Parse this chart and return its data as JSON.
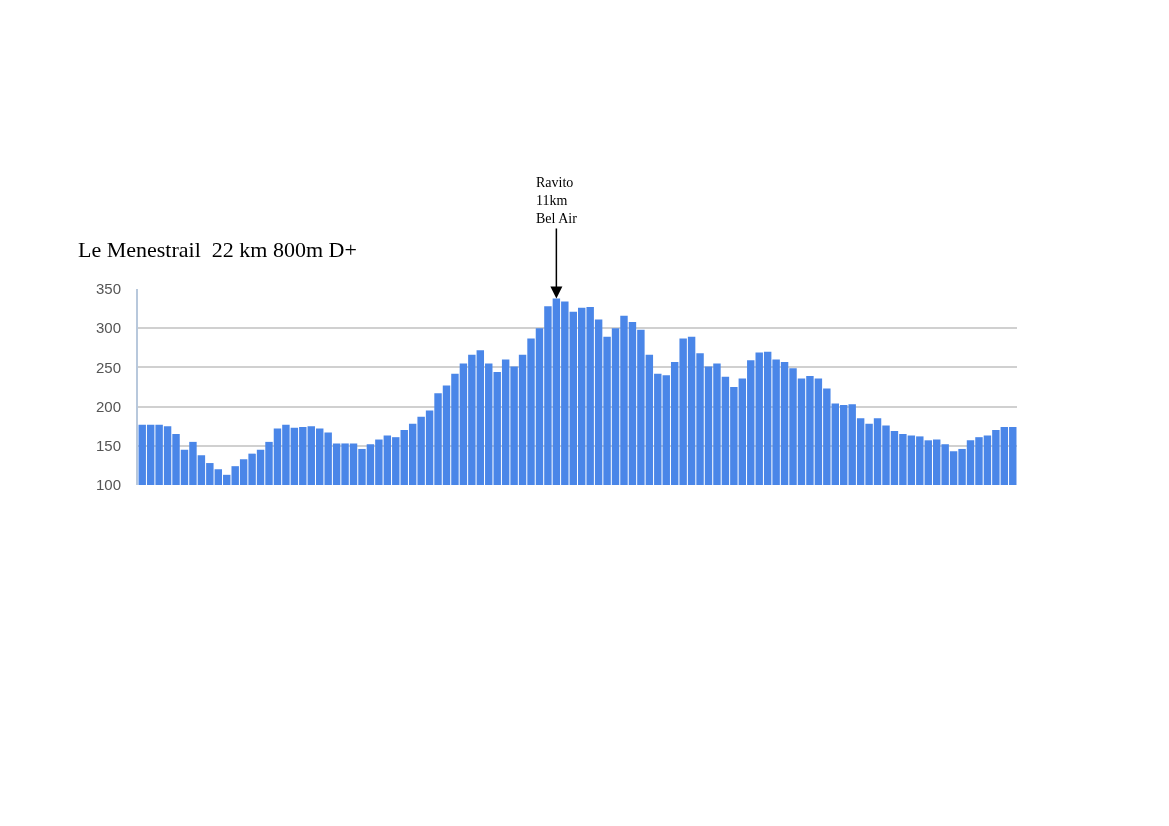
{
  "chart_data": {
    "type": "bar",
    "title": "Le Menestrail  22 km 800m D+",
    "categories": [
      null,
      null,
      null,
      null,
      null,
      null,
      null,
      null,
      null,
      null,
      null,
      null,
      null,
      null,
      null,
      null,
      null,
      null,
      null,
      null,
      null,
      null,
      null,
      null,
      null,
      null,
      null,
      null,
      null,
      null,
      null,
      null,
      null,
      null,
      null,
      null,
      null,
      null,
      null,
      null,
      null,
      null,
      null,
      null,
      null,
      null,
      null,
      null,
      null,
      null,
      null,
      null,
      null,
      null,
      null,
      null,
      null,
      null,
      null,
      null,
      null,
      null,
      null,
      null,
      null,
      null,
      null,
      null,
      null,
      null,
      null,
      null,
      null,
      null,
      null,
      null,
      null,
      null,
      null,
      null,
      null,
      null,
      null,
      null,
      null,
      null,
      null,
      null,
      null,
      null,
      null,
      null,
      null,
      null,
      null,
      null,
      null,
      null,
      null,
      null,
      null,
      null,
      null,
      null
    ],
    "values": [
      177,
      177,
      177,
      175,
      165,
      145,
      155,
      138,
      128,
      120,
      113,
      124,
      133,
      140,
      145,
      155,
      172,
      177,
      173,
      174,
      175,
      172,
      167,
      153,
      153,
      153,
      146,
      152,
      158,
      163,
      161,
      170,
      178,
      187,
      195,
      217,
      227,
      242,
      255,
      266,
      272,
      255,
      244,
      260,
      251,
      266,
      287,
      300,
      328,
      338,
      334,
      321,
      326,
      327,
      311,
      289,
      300,
      316,
      308,
      298,
      266,
      242,
      240,
      257,
      287,
      289,
      268,
      251,
      255,
      238,
      225,
      236,
      259,
      269,
      270,
      260,
      257,
      249,
      236,
      239,
      236,
      223,
      204,
      202,
      203,
      185,
      178,
      185,
      176,
      169,
      165,
      163,
      162,
      157,
      158,
      152,
      143,
      146,
      157,
      161,
      163,
      170,
      174,
      174
    ],
    "color": "#4a86e8",
    "ylim": [
      100,
      350
    ],
    "yticks": [
      100,
      150,
      200,
      250,
      300,
      350
    ],
    "grid": "y",
    "tick_labels": "y",
    "annotations": [
      {
        "text": "Ravito\n11km\nBel Air",
        "y": 338
      }
    ]
  }
}
